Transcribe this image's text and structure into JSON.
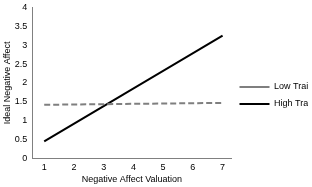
{
  "chart_data": {
    "type": "line",
    "x_label": "Negative Affect Valuation",
    "y_label": "Ideal Negative Affect",
    "series": [
      {
        "name": "Low Trait NA",
        "color": "#7f7f7f",
        "line_style": "dashed",
        "x": [
          1,
          7
        ],
        "values": [
          1.42,
          1.47
        ]
      },
      {
        "name": "High Trait NA",
        "color": "#000000",
        "line_style": "solid",
        "x": [
          1,
          7
        ],
        "values": [
          0.45,
          3.25
        ]
      }
    ],
    "xlim": [
      0.6,
      7.3
    ],
    "xticks": [
      1,
      2,
      3,
      4,
      5,
      6,
      7
    ],
    "ylim": [
      0,
      4
    ],
    "yticks": [
      0,
      0.5,
      1,
      1.5,
      2,
      2.5,
      3,
      3.5,
      4
    ],
    "grid": false,
    "legend": "right"
  }
}
